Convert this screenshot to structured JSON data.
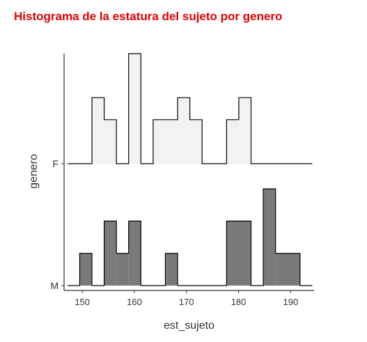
{
  "chart_data": {
    "type": "ridgeline-histogram",
    "title": "Histograma de la estatura del sujeto por genero",
    "xlabel": "est_sujeto",
    "ylabel": "genero",
    "xlim": [
      146.5,
      194.5
    ],
    "x_ticks": [
      150,
      160,
      170,
      180,
      190
    ],
    "bin_width": 2.35,
    "grid": false,
    "legend": "none",
    "series": [
      {
        "name": "F",
        "fill": "#f2f2f2",
        "stroke": "#000000",
        "bins": [
          {
            "start": 147.15,
            "end": 151.85,
            "count": 0
          },
          {
            "start": 151.85,
            "end": 154.2,
            "count": 3
          },
          {
            "start": 154.2,
            "end": 156.55,
            "count": 2
          },
          {
            "start": 156.55,
            "end": 158.9,
            "count": 0
          },
          {
            "start": 158.9,
            "end": 161.25,
            "count": 5
          },
          {
            "start": 161.25,
            "end": 163.6,
            "count": 0
          },
          {
            "start": 163.6,
            "end": 168.3,
            "count": 2
          },
          {
            "start": 168.3,
            "end": 170.65,
            "count": 3
          },
          {
            "start": 170.65,
            "end": 173.0,
            "count": 2
          },
          {
            "start": 173.0,
            "end": 177.7,
            "count": 0
          },
          {
            "start": 177.7,
            "end": 180.05,
            "count": 2
          },
          {
            "start": 180.05,
            "end": 182.4,
            "count": 3
          },
          {
            "start": 182.4,
            "end": 194.15,
            "count": 0
          }
        ]
      },
      {
        "name": "M",
        "fill": "#7a7a7a",
        "stroke": "#000000",
        "bins": [
          {
            "start": 147.15,
            "end": 149.5,
            "count": 0
          },
          {
            "start": 149.5,
            "end": 151.85,
            "count": 1
          },
          {
            "start": 151.85,
            "end": 154.2,
            "count": 0
          },
          {
            "start": 154.2,
            "end": 156.55,
            "count": 2
          },
          {
            "start": 156.55,
            "end": 158.9,
            "count": 1
          },
          {
            "start": 158.9,
            "end": 161.25,
            "count": 2
          },
          {
            "start": 161.25,
            "end": 165.95,
            "count": 0
          },
          {
            "start": 165.95,
            "end": 168.3,
            "count": 1
          },
          {
            "start": 168.3,
            "end": 177.7,
            "count": 0
          },
          {
            "start": 177.7,
            "end": 182.4,
            "count": 2
          },
          {
            "start": 182.4,
            "end": 184.75,
            "count": 0
          },
          {
            "start": 184.75,
            "end": 187.1,
            "count": 3
          },
          {
            "start": 187.1,
            "end": 191.8,
            "count": 1
          },
          {
            "start": 191.8,
            "end": 194.15,
            "count": 0
          }
        ]
      }
    ]
  }
}
